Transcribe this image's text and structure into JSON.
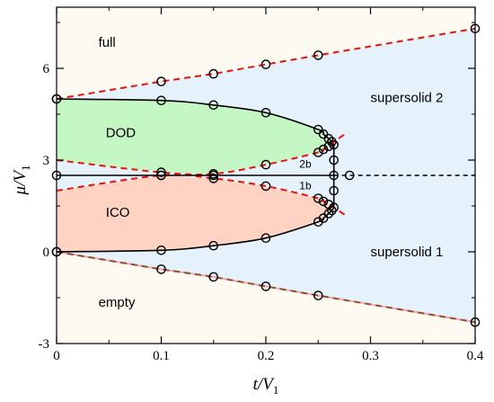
{
  "chart_data": {
    "type": "scatter",
    "xlabel": "t/V",
    "xlabel_sub": "1",
    "ylabel": "μ/V",
    "ylabel_sub": "1",
    "xlim": [
      0,
      0.4
    ],
    "ylim": [
      -3,
      8
    ],
    "xticks": [
      0,
      0.1,
      0.2,
      0.3,
      0.4
    ],
    "xtick_labels": [
      "0",
      "0.1",
      "0.2",
      "0.3",
      "0.4"
    ],
    "xticks_minor": [
      0.05,
      0.15,
      0.25,
      0.35
    ],
    "yticks": [
      -3,
      0,
      3,
      6
    ],
    "ytick_labels": [
      "-3",
      "0",
      "3",
      "6"
    ],
    "yticks_minor": [
      -1.5,
      1.5,
      4.5,
      7.5
    ],
    "grid": false,
    "colors": {
      "empty_full_fill": "#fdfaf1",
      "supersolid_fill": "#e6f2fb",
      "dod_fill": "#c5f7c5",
      "ico_fill": "#fed3c4",
      "red_dash": "#e8130a",
      "brown_dash": "#8c5420",
      "pink_line": "#f2a5c0",
      "black": "#000000"
    },
    "region_labels": [
      {
        "text": "full",
        "x": 0.04,
        "y": 6.7
      },
      {
        "text": "DOD",
        "x": 0.047,
        "y": 3.75
      },
      {
        "text": "ICO",
        "x": 0.047,
        "y": 1.15
      },
      {
        "text": "empty",
        "x": 0.04,
        "y": -1.8
      },
      {
        "text": "supersolid 2",
        "x": 0.3,
        "y": 4.9
      },
      {
        "text": "supersolid 1",
        "x": 0.3,
        "y": -0.15
      },
      {
        "text": "2b",
        "x": 0.232,
        "y": 2.75
      },
      {
        "text": "1b",
        "x": 0.232,
        "y": 2.05
      }
    ],
    "series": [
      {
        "kind": "full_boundary",
        "style": "red-dash",
        "x": [
          0,
          0.1,
          0.15,
          0.2,
          0.25,
          0.4
        ],
        "y": [
          5.0,
          5.57,
          5.82,
          6.13,
          6.43,
          7.3
        ]
      },
      {
        "kind": "empty_boundary",
        "style": "brown-dash",
        "x": [
          0,
          0.1,
          0.15,
          0.2,
          0.25,
          0.4
        ],
        "y": [
          0.0,
          -0.57,
          -0.82,
          -1.13,
          -1.43,
          -2.3
        ]
      },
      {
        "kind": "dod_upper",
        "style": "solid",
        "x": [
          0,
          0.1,
          0.15,
          0.2,
          0.25,
          0.255,
          0.26,
          0.263,
          0.265
        ],
        "y": [
          5.0,
          4.95,
          4.8,
          4.55,
          4.0,
          3.85,
          3.7,
          3.6,
          3.5
        ]
      },
      {
        "kind": "dod_lower",
        "style": "red-dash",
        "x": [
          0,
          0.1,
          0.15,
          0.2,
          0.25,
          0.255,
          0.26,
          0.265,
          0.278
        ],
        "y": [
          3.0,
          2.6,
          2.55,
          2.85,
          3.25,
          3.35,
          3.45,
          3.6,
          3.9
        ]
      },
      {
        "kind": "ico_lower",
        "style": "solid",
        "x": [
          0,
          0.1,
          0.15,
          0.2,
          0.25,
          0.255,
          0.26,
          0.263,
          0.265
        ],
        "y": [
          0.0,
          0.05,
          0.2,
          0.45,
          0.98,
          1.1,
          1.25,
          1.35,
          1.45
        ]
      },
      {
        "kind": "ico_upper",
        "style": "red-dash",
        "x": [
          0,
          0.1,
          0.15,
          0.2,
          0.25,
          0.255,
          0.26,
          0.265,
          0.278
        ],
        "y": [
          2.0,
          2.5,
          2.4,
          2.15,
          1.75,
          1.65,
          1.55,
          1.45,
          1.15
        ]
      },
      {
        "kind": "half_filling",
        "style": "solid",
        "x": [
          0,
          0.265
        ],
        "y": [
          2.5,
          2.5
        ]
      },
      {
        "kind": "half_filling_extension",
        "style": "black-dash",
        "x": [
          0.265,
          0.4
        ],
        "y": [
          2.5,
          2.5
        ]
      },
      {
        "kind": "vertical_boundary",
        "style": "solid",
        "x": [
          0.265,
          0.265
        ],
        "y": [
          1.45,
          3.5
        ]
      },
      {
        "kind": "data_points",
        "style": "open-circle",
        "x": [
          0,
          0.1,
          0.15,
          0.2,
          0.25,
          0.4,
          0,
          0.1,
          0.15,
          0.2,
          0.25,
          0.4,
          0,
          0.1,
          0.15,
          0.2,
          0.25,
          0.255,
          0.26,
          0.263,
          0.1,
          0.15,
          0.2,
          0.25,
          0.255,
          0.26,
          0,
          0.1,
          0.15,
          0.2,
          0.25,
          0.255,
          0.26,
          0.263,
          0.1,
          0.15,
          0.2,
          0.25,
          0.255,
          0.26,
          0,
          0.1,
          0.15,
          0.265,
          0.265,
          0.265,
          0.265,
          0.265,
          0.28
        ],
        "y": [
          5.0,
          5.57,
          5.82,
          6.13,
          6.43,
          7.3,
          0.0,
          -0.57,
          -0.82,
          -1.13,
          -1.43,
          -2.3,
          5.0,
          4.95,
          4.8,
          4.55,
          4.0,
          3.85,
          3.7,
          3.6,
          2.6,
          2.55,
          2.85,
          3.25,
          3.35,
          3.45,
          0.0,
          0.05,
          0.2,
          0.45,
          0.98,
          1.1,
          1.25,
          1.35,
          2.5,
          2.4,
          2.15,
          1.75,
          1.65,
          1.55,
          2.5,
          2.5,
          2.5,
          1.45,
          2.0,
          2.5,
          3.0,
          3.5,
          2.5
        ]
      }
    ]
  }
}
